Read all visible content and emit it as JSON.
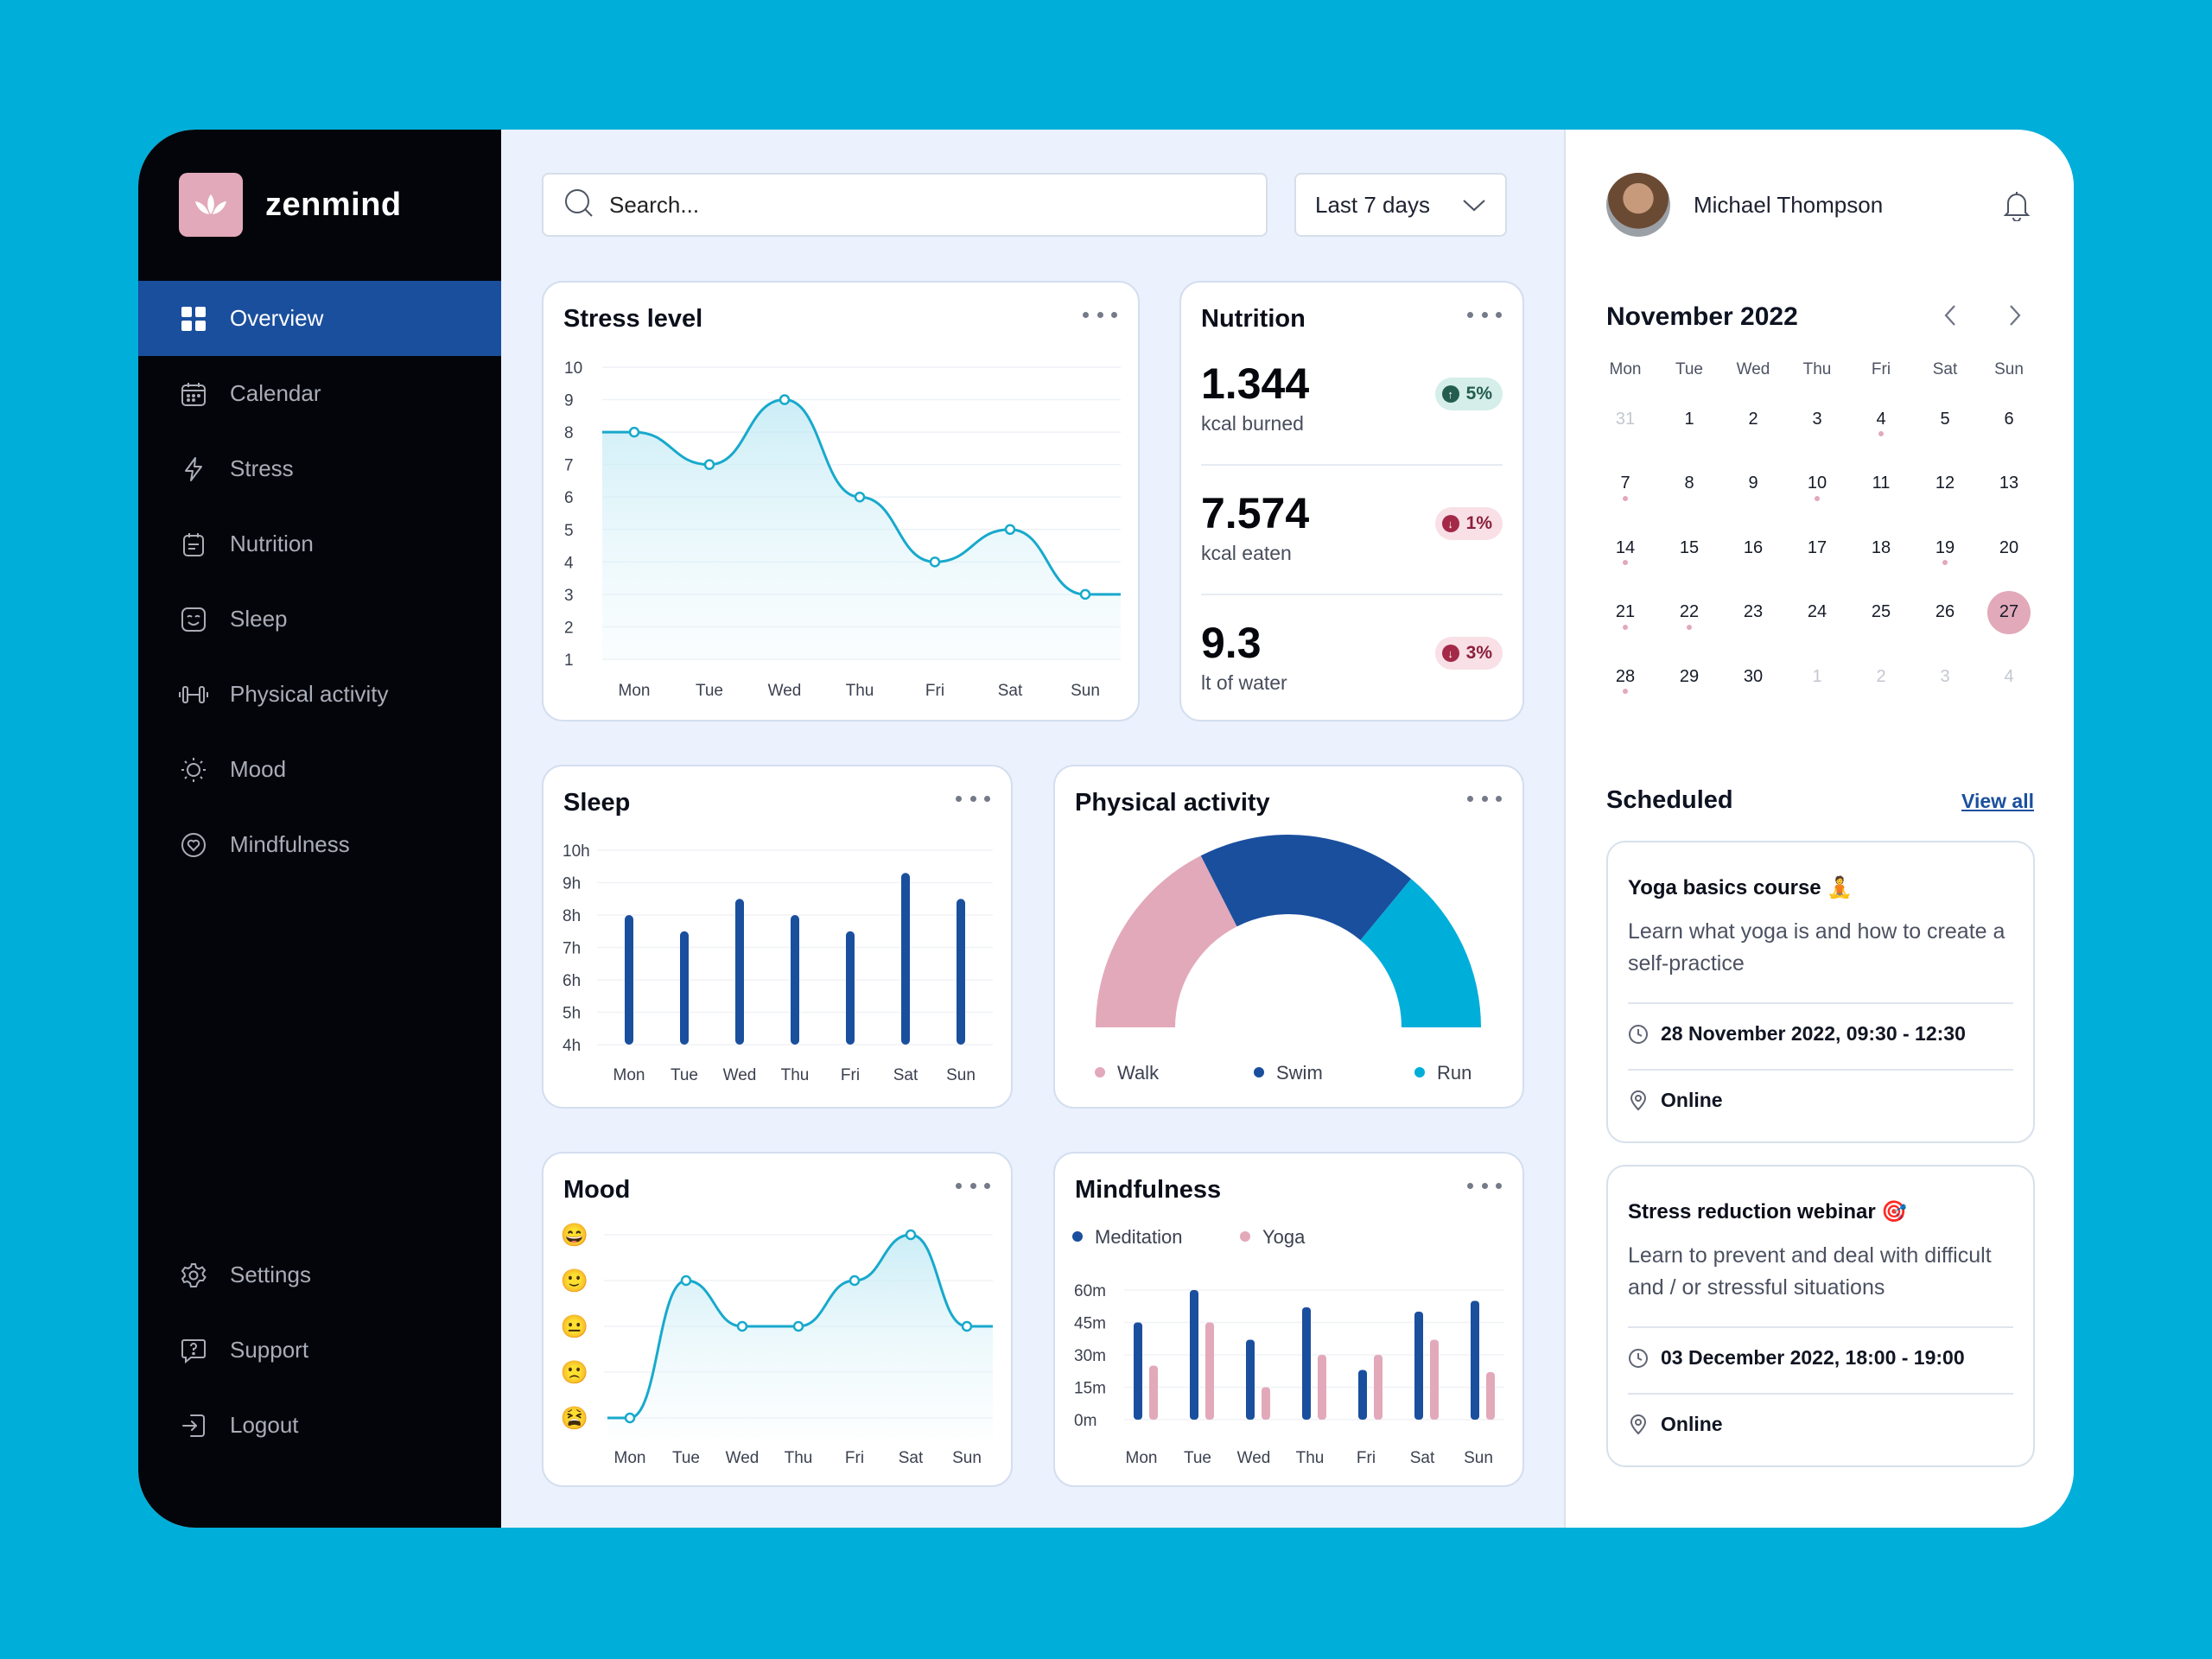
{
  "brand": {
    "name": "zenmind"
  },
  "nav": {
    "items": [
      {
        "label": "Overview",
        "icon": "grid-icon",
        "active": true
      },
      {
        "label": "Calendar",
        "icon": "calendar-icon"
      },
      {
        "label": "Stress",
        "icon": "bolt-icon"
      },
      {
        "label": "Nutrition",
        "icon": "nutrition-icon"
      },
      {
        "label": "Sleep",
        "icon": "sleep-face-icon"
      },
      {
        "label": "Physical activity",
        "icon": "dumbbell-icon"
      },
      {
        "label": "Mood",
        "icon": "sun-icon"
      },
      {
        "label": "Mindfulness",
        "icon": "heart-icon"
      }
    ],
    "bottom": [
      {
        "label": "Settings",
        "icon": "gear-icon"
      },
      {
        "label": "Support",
        "icon": "help-icon"
      },
      {
        "label": "Logout",
        "icon": "logout-icon"
      }
    ]
  },
  "search": {
    "placeholder": "Search..."
  },
  "range": {
    "label": "Last 7 days"
  },
  "cards": {
    "stress": {
      "title": "Stress level"
    },
    "nutrition": {
      "title": "Nutrition"
    },
    "sleep": {
      "title": "Sleep"
    },
    "activity": {
      "title": "Physical activity"
    },
    "mood": {
      "title": "Mood"
    },
    "mindfulness": {
      "title": "Mindfulness"
    }
  },
  "nutrition": [
    {
      "value": "1.344",
      "label": "kcal burned",
      "change": "5%",
      "trend": "up"
    },
    {
      "value": "7.574",
      "label": "kcal eaten",
      "change": "1%",
      "trend": "down"
    },
    {
      "value": "9.3",
      "label": "lt of water",
      "change": "3%",
      "trend": "down"
    }
  ],
  "chart_data": [
    {
      "id": "stress",
      "type": "line",
      "title": "Stress level",
      "categories": [
        "Mon",
        "Tue",
        "Wed",
        "Thu",
        "Fri",
        "Sat",
        "Sun"
      ],
      "values": [
        8,
        7,
        9,
        6,
        4,
        5,
        3
      ],
      "ylim": [
        1,
        10
      ],
      "yticks": [
        "1",
        "2",
        "3",
        "4",
        "5",
        "6",
        "7",
        "8",
        "9",
        "10"
      ],
      "color": "#17a9cc"
    },
    {
      "id": "sleep",
      "type": "bar",
      "title": "Sleep",
      "categories": [
        "Mon",
        "Tue",
        "Wed",
        "Thu",
        "Fri",
        "Sat",
        "Sun"
      ],
      "values": [
        8,
        7.5,
        8.5,
        8,
        7.5,
        9.3,
        8.5
      ],
      "ylim": [
        4,
        10
      ],
      "yticks": [
        "4h",
        "5h",
        "6h",
        "7h",
        "8h",
        "9h",
        "10h"
      ],
      "color": "#1a4f9e"
    },
    {
      "id": "activity",
      "type": "pie",
      "title": "Physical activity",
      "labels": [
        "Walk",
        "Swim",
        "Run"
      ],
      "values": [
        35,
        37,
        28
      ],
      "colors": [
        "#e2a9ba",
        "#1a4f9e",
        "#00aeda"
      ]
    },
    {
      "id": "mood",
      "type": "line",
      "title": "Mood",
      "categories": [
        "Mon",
        "Tue",
        "Wed",
        "Thu",
        "Fri",
        "Sat",
        "Sun"
      ],
      "values": [
        1,
        4,
        3,
        3,
        4,
        5,
        3
      ],
      "ylim": [
        1,
        5
      ],
      "yticks": [
        "😫",
        "🙁",
        "😐",
        "🙂",
        "😄"
      ],
      "color": "#17a9cc"
    },
    {
      "id": "mindfulness",
      "type": "bar",
      "title": "Mindfulness",
      "categories": [
        "Mon",
        "Tue",
        "Wed",
        "Thu",
        "Fri",
        "Sat",
        "Sun"
      ],
      "series": [
        {
          "name": "Meditation",
          "values": [
            45,
            60,
            37,
            52,
            23,
            50,
            55
          ],
          "color": "#1a4f9e"
        },
        {
          "name": "Yoga",
          "values": [
            25,
            45,
            15,
            30,
            30,
            37,
            22
          ],
          "color": "#e2a9ba"
        }
      ],
      "ylim": [
        0,
        60
      ],
      "yticks": [
        "0m",
        "15m",
        "30m",
        "45m",
        "60m"
      ]
    }
  ],
  "profile": {
    "name": "Michael Thompson"
  },
  "calendar": {
    "title": "November 2022",
    "weekdays": [
      "Mon",
      "Tue",
      "Wed",
      "Thu",
      "Fri",
      "Sat",
      "Sun"
    ],
    "days": [
      {
        "d": "31",
        "muted": true
      },
      {
        "d": "1"
      },
      {
        "d": "2"
      },
      {
        "d": "3"
      },
      {
        "d": "4",
        "dot": true
      },
      {
        "d": "5"
      },
      {
        "d": "6"
      },
      {
        "d": "7",
        "dot": true
      },
      {
        "d": "8"
      },
      {
        "d": "9"
      },
      {
        "d": "10",
        "dot": true
      },
      {
        "d": "11"
      },
      {
        "d": "12"
      },
      {
        "d": "13"
      },
      {
        "d": "14",
        "dot": true
      },
      {
        "d": "15"
      },
      {
        "d": "16"
      },
      {
        "d": "17"
      },
      {
        "d": "18"
      },
      {
        "d": "19",
        "dot": true
      },
      {
        "d": "20"
      },
      {
        "d": "21",
        "dot": true
      },
      {
        "d": "22",
        "dot": true
      },
      {
        "d": "23"
      },
      {
        "d": "24"
      },
      {
        "d": "25"
      },
      {
        "d": "26"
      },
      {
        "d": "27",
        "selected": true
      },
      {
        "d": "28",
        "dot": true
      },
      {
        "d": "29"
      },
      {
        "d": "30"
      },
      {
        "d": "1",
        "muted": true
      },
      {
        "d": "2",
        "muted": true
      },
      {
        "d": "3",
        "muted": true
      },
      {
        "d": "4",
        "muted": true
      }
    ]
  },
  "scheduled": {
    "title": "Scheduled",
    "view_all": "View all",
    "events": [
      {
        "title": "Yoga basics course 🧘",
        "desc": "Learn what yoga is and how to create a self-practice",
        "when": "28 November 2022, 09:30 - 12:30",
        "where": "Online"
      },
      {
        "title": "Stress reduction webinar 🎯",
        "desc": "Learn to prevent and deal with difficult and / or stressful situations",
        "when": "03 December 2022, 18:00 - 19:00",
        "where": "Online"
      }
    ]
  }
}
